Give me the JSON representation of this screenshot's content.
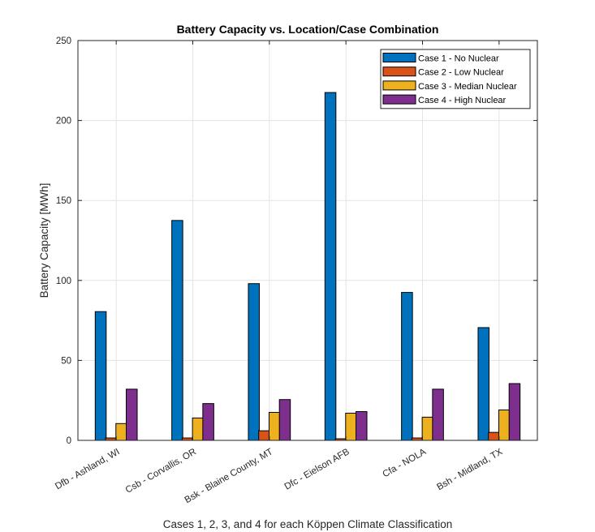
{
  "chart_data": {
    "type": "bar",
    "title": "Battery Capacity vs. Location/Case Combination",
    "xlabel": "Cases 1, 2, 3, and 4 for each Köppen Climate Classification",
    "ylabel": "Battery Capacity [MWh]",
    "ylim": [
      0,
      250
    ],
    "yticks": [
      0,
      50,
      100,
      150,
      200,
      250
    ],
    "grid": true,
    "legend_position": "top-right",
    "categories": [
      "Dfb - Ashland, WI",
      "Csb - Corvallis, OR",
      "Bsk - Blaine County, MT",
      "Dfc - Eielson AFB",
      "Cfa - NOLA",
      "Bsh - Midland, TX"
    ],
    "series": [
      {
        "name": "Case 1 - No Nuclear",
        "color": "#0072BD",
        "values": [
          80.5,
          137.5,
          98,
          217.5,
          92.5,
          70.5
        ]
      },
      {
        "name": "Case 2 - Low Nuclear",
        "color": "#D95319",
        "values": [
          1.5,
          1.5,
          6,
          1,
          1.5,
          5
        ]
      },
      {
        "name": "Case 3 - Median Nuclear",
        "color": "#EDB120",
        "values": [
          10.5,
          14,
          17.5,
          17,
          14.5,
          19
        ]
      },
      {
        "name": "Case 4 - High Nuclear",
        "color": "#7E2F8E",
        "values": [
          32,
          23,
          25.5,
          18,
          32,
          35.5
        ]
      }
    ]
  }
}
